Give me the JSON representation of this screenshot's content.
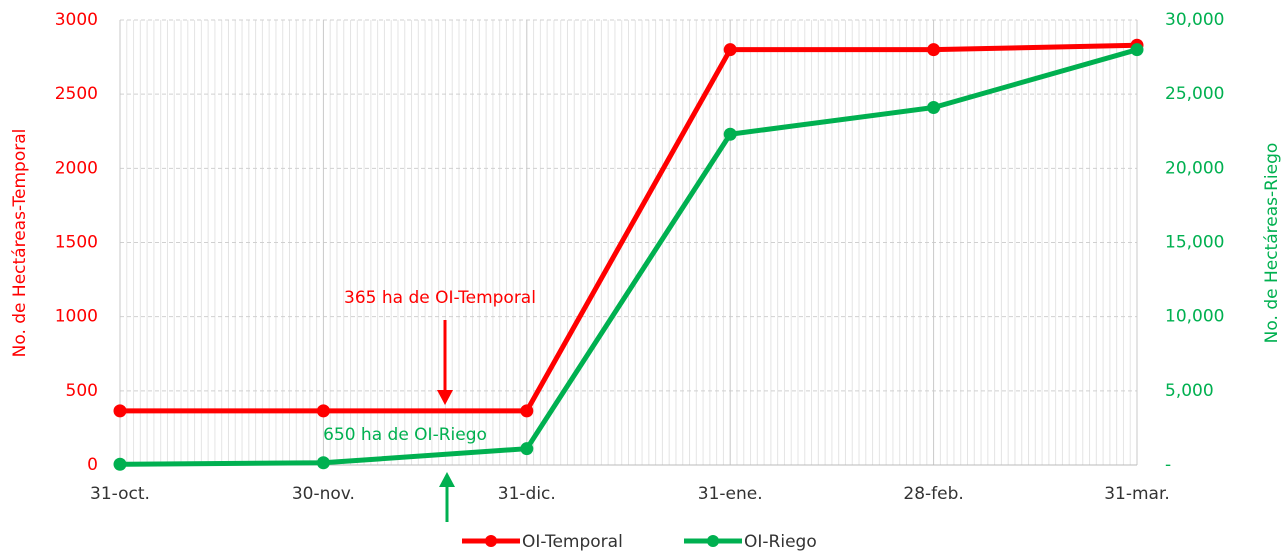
{
  "chart_data": {
    "type": "line",
    "categories": [
      "31-oct.",
      "30-nov.",
      "31-dic.",
      "31-ene.",
      "28-feb.",
      "31-mar."
    ],
    "series": [
      {
        "name": "OI-Temporal",
        "color": "#ff0000",
        "values": [
          365,
          365,
          365,
          2800,
          2800,
          2830
        ]
      },
      {
        "name": "OI-Riego",
        "color": "#00b050",
        "axis": "y2",
        "values": [
          50,
          150,
          1100,
          22300,
          24100,
          28000
        ]
      }
    ],
    "ylabel": "No. de Hectáreas-Temporal",
    "y2label": "No. de Hectáreas-Riego",
    "ylim": [
      0,
      3000
    ],
    "yticks": [
      0,
      500,
      1000,
      1500,
      2000,
      2500,
      3000
    ],
    "y2lim": [
      0,
      30000
    ],
    "y2ticks": [
      {
        "value": 0,
        "label": "-"
      },
      {
        "value": 5000,
        "label": "5,000"
      },
      {
        "value": 10000,
        "label": "10,000"
      },
      {
        "value": 15000,
        "label": "15,000"
      },
      {
        "value": 20000,
        "label": "20,000"
      },
      {
        "value": 25000,
        "label": "25,000"
      },
      {
        "value": 30000,
        "label": "30,000"
      }
    ],
    "annotations": [
      "365 ha de OI-Temporal",
      "650 ha de OI-Riego"
    ],
    "grid": true,
    "legend": "bottom"
  }
}
